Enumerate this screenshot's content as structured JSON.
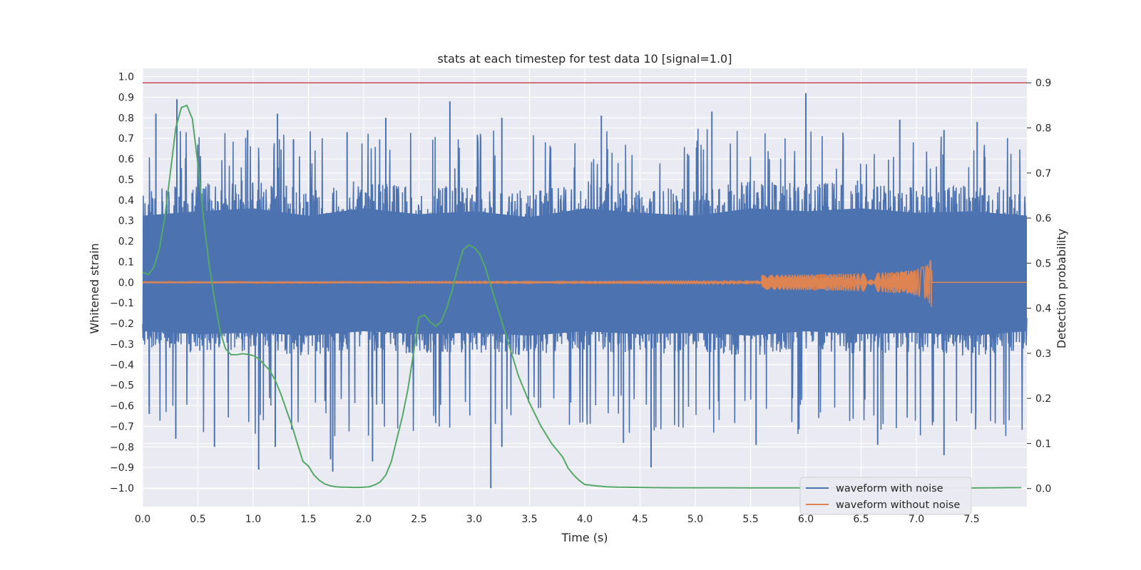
{
  "chart_data": {
    "type": "line",
    "title": "stats at each timestep for test data 10 [signal=1.0]",
    "xlabel": "Time (s)",
    "ylabel": "Whitened strain",
    "y2label": "Detection probability",
    "xlim": [
      0.0,
      8.0
    ],
    "ylim": [
      -1.09,
      1.04
    ],
    "y2lim": [
      -0.04,
      0.932
    ],
    "xticks": [
      "0.0",
      "0.5",
      "1.0",
      "1.5",
      "2.0",
      "2.5",
      "3.0",
      "3.5",
      "4.0",
      "4.5",
      "5.0",
      "5.5",
      "6.0",
      "6.5",
      "7.0",
      "7.5"
    ],
    "yticks": [
      "1.0",
      "0.9",
      "0.8",
      "0.7",
      "0.6",
      "0.5",
      "0.4",
      "0.3",
      "0.2",
      "0.1",
      "0.0",
      "−0.1",
      "−0.2",
      "−0.3",
      "−0.4",
      "−0.5",
      "−0.6",
      "−0.7",
      "−0.8",
      "−0.9",
      "−1.0"
    ],
    "y2ticks": [
      "0.9",
      "0.8",
      "0.7",
      "0.6",
      "0.5",
      "0.4",
      "0.3",
      "0.2",
      "0.1",
      "0.0"
    ],
    "threshold": {
      "axis": "right",
      "value": 0.9,
      "color": "#c44e52"
    },
    "grid": true,
    "legend_position": "lower-right",
    "colors": {
      "noise": "#4c72b0",
      "clean": "#dd8452",
      "prob": "#55a868",
      "plot_bg": "#eaeaf2"
    },
    "series": [
      {
        "name": "waveform with noise",
        "axis": "left",
        "envelope_upper": [
          [
            0.0,
            0.45
          ],
          [
            0.5,
            0.48
          ],
          [
            1.0,
            0.5
          ],
          [
            1.5,
            0.45
          ],
          [
            2.0,
            0.5
          ],
          [
            2.5,
            0.46
          ],
          [
            3.0,
            0.48
          ],
          [
            3.5,
            0.44
          ],
          [
            4.0,
            0.5
          ],
          [
            4.5,
            0.47
          ],
          [
            5.0,
            0.45
          ],
          [
            5.5,
            0.5
          ],
          [
            6.0,
            0.48
          ],
          [
            6.5,
            0.5
          ],
          [
            7.0,
            0.47
          ],
          [
            7.5,
            0.48
          ],
          [
            8.0,
            0.45
          ]
        ],
        "envelope_lower": [
          [
            0.0,
            -0.33
          ],
          [
            0.5,
            -0.35
          ],
          [
            1.0,
            -0.34
          ],
          [
            1.5,
            -0.36
          ],
          [
            2.0,
            -0.33
          ],
          [
            2.5,
            -0.35
          ],
          [
            3.0,
            -0.34
          ],
          [
            3.5,
            -0.36
          ],
          [
            4.0,
            -0.33
          ],
          [
            4.5,
            -0.35
          ],
          [
            5.0,
            -0.34
          ],
          [
            5.5,
            -0.36
          ],
          [
            6.0,
            -0.33
          ],
          [
            6.5,
            -0.35
          ],
          [
            7.0,
            -0.34
          ],
          [
            7.5,
            -0.36
          ],
          [
            8.0,
            -0.33
          ]
        ],
        "peaks": [
          [
            0.12,
            0.82
          ],
          [
            0.31,
            0.89
          ],
          [
            0.95,
            0.74
          ],
          [
            1.22,
            0.82
          ],
          [
            1.85,
            0.73
          ],
          [
            2.2,
            0.8
          ],
          [
            2.78,
            0.88
          ],
          [
            3.25,
            0.8
          ],
          [
            4.15,
            0.81
          ],
          [
            5.15,
            0.83
          ],
          [
            6.0,
            0.92
          ],
          [
            6.85,
            0.79
          ],
          [
            7.25,
            0.74
          ],
          [
            7.55,
            0.78
          ]
        ],
        "troughs": [
          [
            0.06,
            -0.64
          ],
          [
            0.3,
            -0.76
          ],
          [
            0.65,
            -0.8
          ],
          [
            1.05,
            -0.91
          ],
          [
            1.2,
            -0.8
          ],
          [
            1.7,
            -0.86
          ],
          [
            1.72,
            -0.92
          ],
          [
            2.08,
            -0.87
          ],
          [
            3.15,
            -1.0
          ],
          [
            3.25,
            -0.8
          ],
          [
            4.35,
            -0.78
          ],
          [
            4.6,
            -0.9
          ],
          [
            5.55,
            -0.79
          ],
          [
            6.65,
            -0.79
          ],
          [
            7.25,
            -0.84
          ]
        ]
      },
      {
        "name": "waveform without noise",
        "axis": "left",
        "chirp_end": 7.14,
        "chirp_peak_amplitude": 0.12
      },
      {
        "name": "",
        "axis": "right",
        "x": [
          0.0,
          0.05,
          0.1,
          0.15,
          0.2,
          0.25,
          0.3,
          0.35,
          0.4,
          0.45,
          0.5,
          0.55,
          0.6,
          0.65,
          0.7,
          0.75,
          0.8,
          0.85,
          0.9,
          0.95,
          1.0,
          1.05,
          1.1,
          1.15,
          1.2,
          1.25,
          1.3,
          1.35,
          1.4,
          1.45,
          1.5,
          1.55,
          1.6,
          1.65,
          1.7,
          1.75,
          1.8,
          1.85,
          1.9,
          1.95,
          2.0,
          2.05,
          2.1,
          2.15,
          2.2,
          2.25,
          2.3,
          2.35,
          2.4,
          2.45,
          2.5,
          2.55,
          2.6,
          2.65,
          2.7,
          2.75,
          2.8,
          2.85,
          2.9,
          2.95,
          3.0,
          3.05,
          3.1,
          3.15,
          3.2,
          3.25,
          3.3,
          3.35,
          3.4,
          3.45,
          3.5,
          3.55,
          3.6,
          3.65,
          3.7,
          3.75,
          3.8,
          3.85,
          3.9,
          3.95,
          4.0,
          4.1,
          4.2,
          4.3,
          4.4,
          4.5,
          4.6,
          4.8,
          5.0,
          5.5,
          6.0,
          6.5,
          7.0,
          7.5,
          7.95
        ],
        "y": [
          0.48,
          0.475,
          0.49,
          0.53,
          0.6,
          0.7,
          0.8,
          0.845,
          0.85,
          0.82,
          0.72,
          0.6,
          0.5,
          0.42,
          0.35,
          0.31,
          0.297,
          0.297,
          0.299,
          0.298,
          0.295,
          0.288,
          0.275,
          0.262,
          0.24,
          0.21,
          0.175,
          0.14,
          0.1,
          0.06,
          0.05,
          0.03,
          0.018,
          0.01,
          0.006,
          0.004,
          0.003,
          0.003,
          0.0025,
          0.0025,
          0.003,
          0.004,
          0.008,
          0.015,
          0.03,
          0.06,
          0.11,
          0.16,
          0.22,
          0.3,
          0.38,
          0.385,
          0.37,
          0.36,
          0.37,
          0.4,
          0.44,
          0.49,
          0.53,
          0.54,
          0.535,
          0.52,
          0.49,
          0.45,
          0.41,
          0.37,
          0.33,
          0.29,
          0.25,
          0.22,
          0.19,
          0.165,
          0.14,
          0.12,
          0.1,
          0.085,
          0.07,
          0.045,
          0.03,
          0.018,
          0.009,
          0.006,
          0.004,
          0.003,
          0.0028,
          0.0025,
          0.002,
          0.0018,
          0.0017,
          0.0016,
          0.0015,
          0.0014,
          0.0013,
          0.0012,
          0.002
        ]
      }
    ]
  }
}
